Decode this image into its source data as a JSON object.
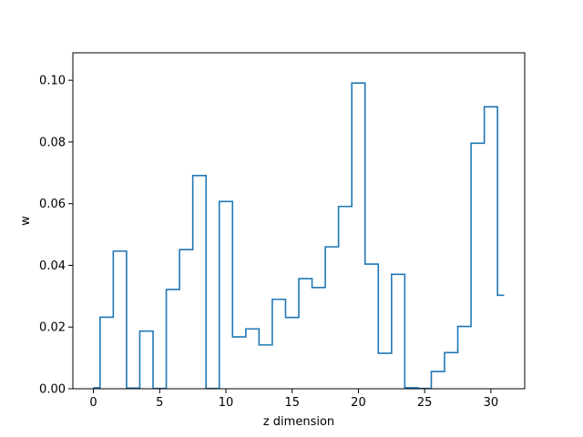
{
  "chart_data": {
    "type": "line",
    "drawstyle": "steps-mid",
    "title": "",
    "xlabel": "z dimension",
    "ylabel": "w",
    "xlim": [
      -1.55,
      32.55
    ],
    "ylim": [
      0.0,
      0.1089
    ],
    "xticks": [
      0,
      5,
      10,
      15,
      20,
      25,
      30
    ],
    "yticks": [
      0.0,
      0.02,
      0.04,
      0.06,
      0.08,
      0.1
    ],
    "ytick_labels": [
      "0.00",
      "0.02",
      "0.04",
      "0.06",
      "0.08",
      "0.10"
    ],
    "grid": false,
    "line_color": "#1f77b4",
    "series": [
      {
        "x": [
          0,
          1,
          2,
          3,
          4,
          5,
          6,
          7,
          8,
          9,
          10,
          11,
          12,
          13,
          14,
          15,
          16,
          17,
          18,
          19,
          20,
          21,
          22,
          23,
          24,
          25,
          26,
          27,
          28,
          29,
          30,
          31
        ],
        "values": [
          0.0003,
          0.0232,
          0.0446,
          0.0002,
          0.0187,
          0.0001,
          0.0322,
          0.0451,
          0.0691,
          0.0001,
          0.0607,
          0.0168,
          0.0194,
          0.0142,
          0.029,
          0.0231,
          0.0357,
          0.0328,
          0.046,
          0.0591,
          0.0991,
          0.0404,
          0.0115,
          0.0371,
          0.0003,
          0.0001,
          0.0056,
          0.0117,
          0.0202,
          0.0796,
          0.0914,
          0.0303
        ]
      }
    ]
  }
}
